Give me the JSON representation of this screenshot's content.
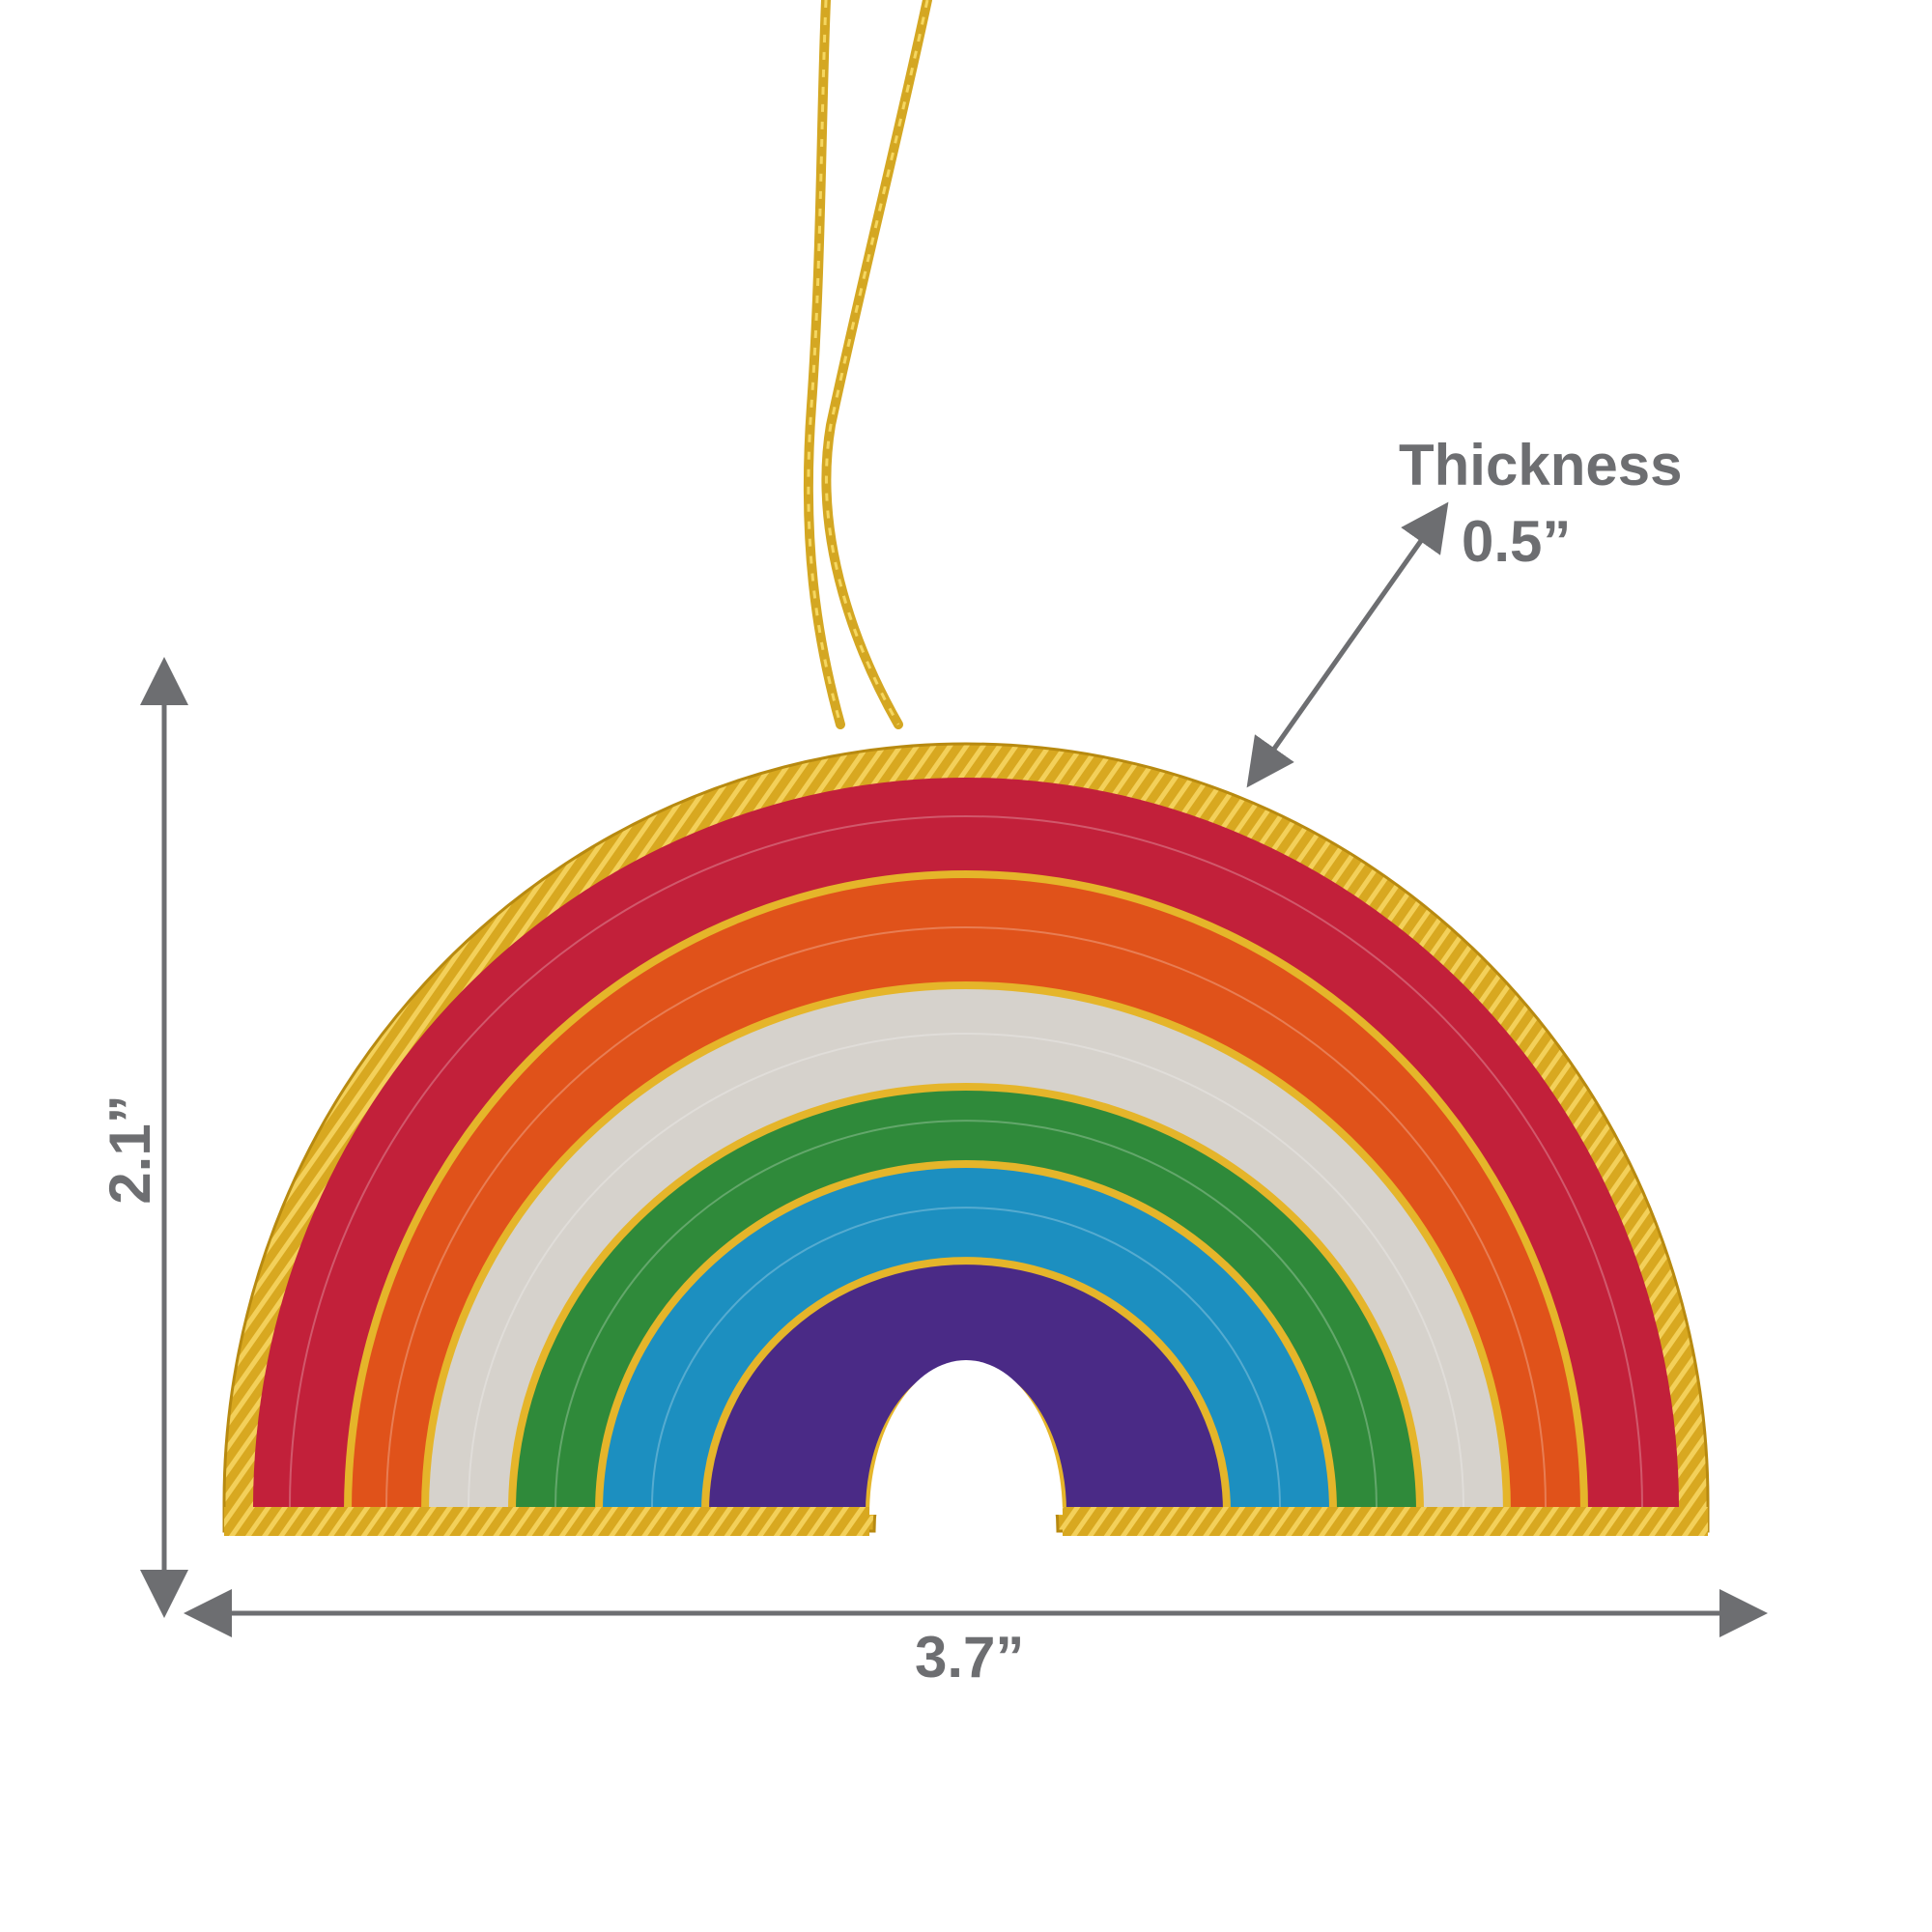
{
  "dimensions": {
    "thickness_title": "Thickness",
    "thickness_value": "0.5”",
    "width_value": "3.7”",
    "height_value": "2.1”"
  },
  "colors": {
    "annotation": "#6d6e71",
    "gold_cord": "#d8a820",
    "band_red": "#c2203a",
    "band_orange": "#e0521a",
    "band_silver": "#d6d2cc",
    "band_green": "#2f8a3a",
    "band_blue": "#1c8fc0",
    "band_purple": "#4a2a86"
  },
  "icons": {
    "ornament": "rainbow-ornament-illustration",
    "arrow": "dimension-arrow-icon"
  }
}
